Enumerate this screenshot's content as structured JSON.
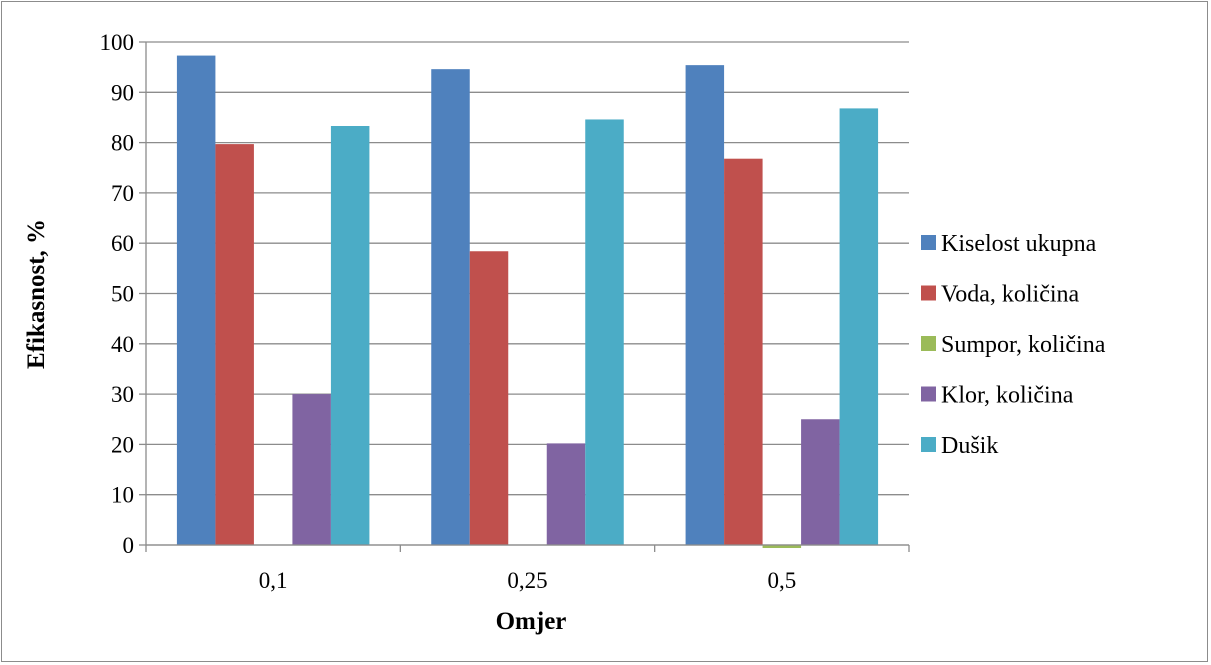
{
  "chart_data": {
    "type": "bar",
    "title": "",
    "xlabel": "Omjer",
    "ylabel": "Efikasnost, %",
    "ylim": [
      0,
      100
    ],
    "ytick_step": 10,
    "grid": true,
    "legend_position": "right",
    "categories": [
      "0,1",
      "0,25",
      "0,5"
    ],
    "series": [
      {
        "name": "Kiselost ukupna",
        "color": "#4f81bd",
        "values": [
          97.3,
          94.6,
          95.4
        ]
      },
      {
        "name": "Voda, količina",
        "color": "#c0504d",
        "values": [
          79.7,
          58.4,
          76.8
        ]
      },
      {
        "name": "Sumpor, količina",
        "color": "#9bbb59",
        "values": [
          0,
          0,
          -0.6
        ]
      },
      {
        "name": "Klor, količina",
        "color": "#8064a2",
        "values": [
          30.0,
          20.2,
          25.0
        ]
      },
      {
        "name": "Dušik",
        "color": "#4bacc6",
        "values": [
          83.3,
          84.6,
          86.8
        ]
      }
    ]
  }
}
